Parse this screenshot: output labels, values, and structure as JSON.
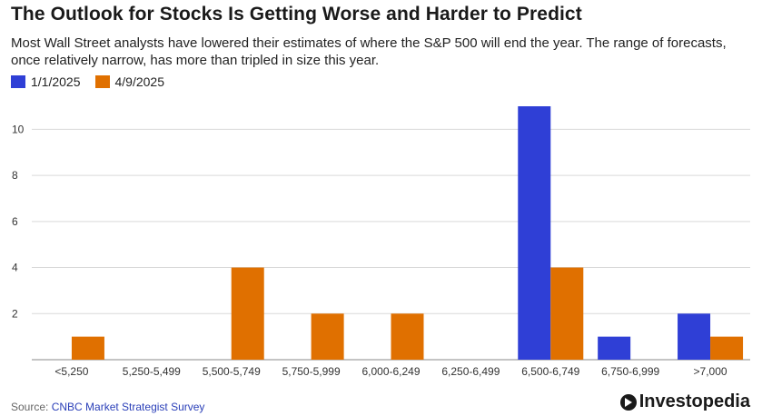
{
  "header": {
    "title": "The Outlook for Stocks Is Getting Worse and Harder to Predict",
    "subtitle": "Most Wall Street analysts have lowered their estimates of where the S&P 500 will end the year. The range of forecasts, once relatively narrow, has more than tripled in size this year."
  },
  "legend": [
    {
      "label": "1/1/2025",
      "color": "#2f3fd6"
    },
    {
      "label": "4/9/2025",
      "color": "#e07000"
    }
  ],
  "footer": {
    "source_prefix": "Source: ",
    "source_name": "CNBC Market Strategist Survey",
    "brand": "Investopedia"
  },
  "chart_data": {
    "type": "bar",
    "title": "The Outlook for Stocks Is Getting Worse and Harder to Predict",
    "subtitle": "Most Wall Street analysts have lowered their estimates of where the S&P 500 will end the year. The range of forecasts, once relatively narrow, has more than tripled in size this year.",
    "xlabel": "",
    "ylabel": "",
    "categories": [
      "<5,250",
      "5,250-5,499",
      "5,500-5,749",
      "5,750-5,999",
      "6,000-6,249",
      "6,250-6,499",
      "6,500-6,749",
      "6,750-6,999",
      ">7,000"
    ],
    "series": [
      {
        "name": "1/1/2025",
        "color": "#2f3fd6",
        "values": [
          0,
          0,
          0,
          0,
          0,
          0,
          11,
          1,
          2
        ]
      },
      {
        "name": "4/9/2025",
        "color": "#e07000",
        "values": [
          1,
          0,
          4,
          2,
          2,
          0,
          4,
          0,
          1
        ]
      }
    ],
    "yticks": [
      2,
      4,
      6,
      8,
      10
    ],
    "ylim": [
      0,
      12
    ],
    "grid": true,
    "legend_position": "top-left"
  }
}
